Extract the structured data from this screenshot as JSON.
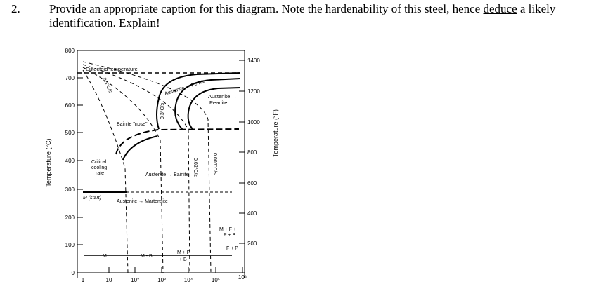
{
  "question": {
    "number": "2.",
    "text_before": "Provide an appropriate caption for this diagram. Note the hardenability of this steel, hence ",
    "underlined": "deduce",
    "text_after": " a likely identification. Explain!"
  },
  "diagram": {
    "left_axis_label": "Temperature (°C)",
    "right_axis_label": "Temperature (°F)",
    "left_ticks": [
      "800",
      "700",
      "600",
      "500",
      "400",
      "300",
      "200",
      "100",
      "0"
    ],
    "right_ticks": [
      "1400",
      "1200",
      "1000",
      "800",
      "600",
      "400",
      "200"
    ],
    "bottom_ticks": [
      "1",
      "10",
      "10²",
      "10³",
      "10⁴",
      "10⁵",
      "10⁶"
    ],
    "annotations": {
      "eutectoid": "Eutectoid temperature",
      "austenite_ferrite": "Austenite → Ferrite",
      "austenite_pearlite_1": "Austenite →",
      "austenite_pearlite_2": "Pearlite",
      "bainite_nose": "Bainite \"nose\"",
      "critical_1": "Critical",
      "critical_2": "cooling",
      "critical_3": "rate",
      "austenite_bainite": "Austenite → Bainite",
      "ms": "M (start)",
      "austenite_martensite": "Austenite → Martensite",
      "mfp_1": "M + F +",
      "mfp_2": "P + B",
      "fp": "F + P",
      "mfb_1": "M + F",
      "mfb_2": "+ B",
      "m": "M",
      "mb": "M - B"
    },
    "cooling_rates": [
      "8.3°C/s",
      "0.3°C/s",
      "0.02°C/s",
      "0.006°C/s"
    ]
  }
}
